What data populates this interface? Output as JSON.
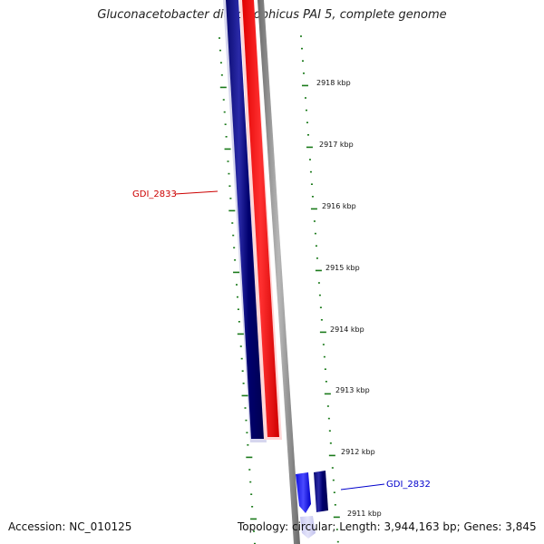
{
  "title": "Gluconacetobacter diazotrophicus PAI 5, complete genome",
  "footer": {
    "accession": "Accession: NC_010125",
    "summary": "Topology: circular; Length: 3,944,163 bp; Genes: 3,845"
  },
  "colors": {
    "reverse_strand": "#000080",
    "forward_strand": "#0000ff",
    "highlight": "#ff0000",
    "backbone": "#808080",
    "tick": "#1a7a1a",
    "label_red": "#cc0000",
    "label_blue": "#0000cc"
  },
  "ticks": {
    "unit": "kbp",
    "labels": [
      "2918 kbp",
      "2917 kbp",
      "2916 kbp",
      "2915 kbp",
      "2914 kbp",
      "2913 kbp",
      "2912 kbp",
      "2911 kbp"
    ]
  },
  "genes": [
    {
      "name": "GDI_2833",
      "color": "#cc0000"
    },
    {
      "name": "GDI_2832",
      "color": "#0000cc"
    }
  ]
}
